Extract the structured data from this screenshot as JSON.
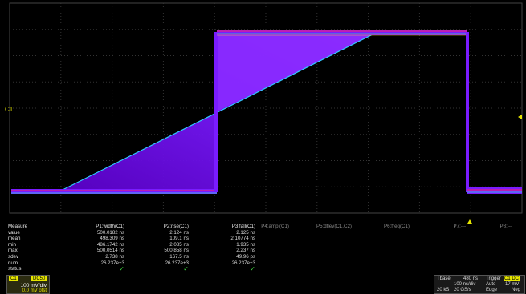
{
  "channel_label": "C1",
  "measure": {
    "row_labels": [
      "Measure",
      "value",
      "mean",
      "min",
      "max",
      "sdev",
      "num",
      "status"
    ],
    "columns": [
      {
        "header": "P1:width(C1)",
        "values": [
          "500.0182 ns",
          "498.309 ns",
          "486.1742 ns",
          "500.0514 ns",
          "2.738 ns",
          "26.237e+3"
        ],
        "status": "✓"
      },
      {
        "header": "P2:rise(C1)",
        "values": [
          "2.124 ns",
          "109.1 ns",
          "2.085 ns",
          "500.858 ns",
          "167.5 ns",
          "26.237e+3"
        ],
        "status": "✓"
      },
      {
        "header": "P3:fall(C1)",
        "values": [
          "2.125 ns",
          "2.10774 ns",
          "1.935 ns",
          "2.237 ns",
          "49.96 ps",
          "26.237e+3"
        ],
        "status": "✓"
      },
      {
        "header": "P4:ampl(C1)"
      },
      {
        "header": "P5:dtlev(C1,C2)"
      },
      {
        "header": "P6:freq(C1)"
      },
      {
        "header": "P7:---"
      },
      {
        "header": "P8:---"
      }
    ]
  },
  "channel_box": {
    "tag": "C1",
    "coupling": "DC50",
    "scale": "100 mV/div",
    "offset": "0.0 mV ofst"
  },
  "timebase": {
    "label": "Tbase",
    "delay": "480 ns",
    "hdiv": "100 ns/div",
    "samples": "20 kS",
    "rate": "20 GS/s",
    "trigger_label": "Trigger",
    "trigger_tags": "C1 DC",
    "trig_mode": "Auto",
    "trig_level": "-17 mV",
    "trig_type": "Edge",
    "trig_slope": "Neg"
  },
  "colors": {
    "trace_main": "#7a1cff",
    "trace_edge": "#ff2266",
    "grid": "#555555",
    "accent": "#e6e600"
  }
}
